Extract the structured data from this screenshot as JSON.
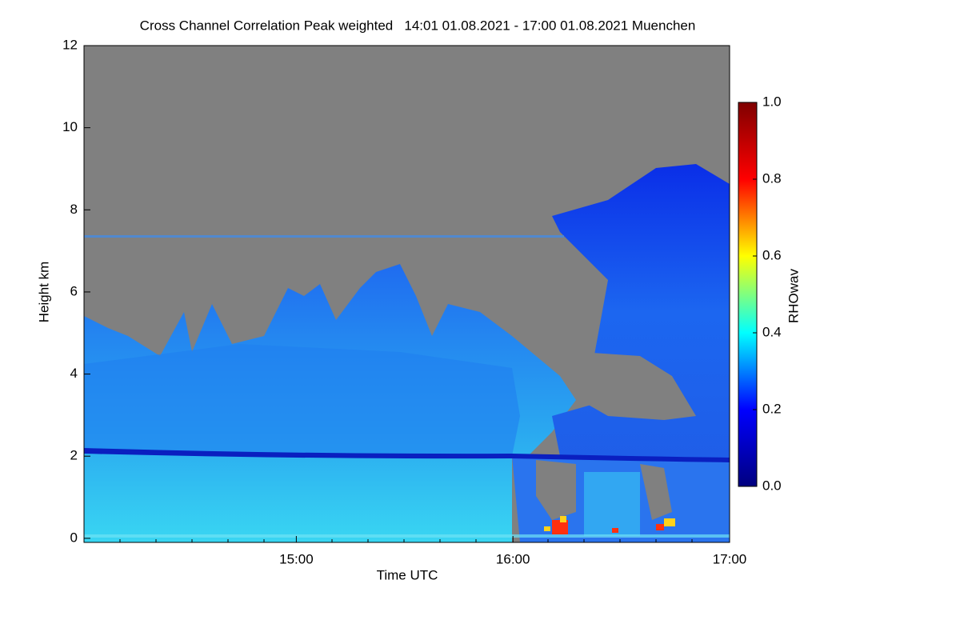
{
  "chart_data": {
    "type": "heatmap",
    "title": "Cross Channel Correlation Peak weighted   14:01 01.08.2021 - 17:00 01.08.2021 Muenchen",
    "xlabel": "Time UTC",
    "ylabel": "Height km",
    "xlim": [
      14.02,
      17.0
    ],
    "xticks": [
      {
        "value": 15,
        "label": "15:00"
      },
      {
        "value": 16,
        "label": "16:00"
      },
      {
        "value": 17,
        "label": "17:00"
      }
    ],
    "ylim": [
      -0.1,
      12
    ],
    "yticks": [
      0,
      2,
      4,
      6,
      8,
      10,
      12
    ],
    "colorbar": {
      "label": "RHOwav",
      "lim": [
        0,
        1
      ],
      "ticks": [
        {
          "value": 0,
          "label": "0.0"
        },
        0.2,
        0.4,
        0.6,
        0.8,
        {
          "value": 1,
          "label": "1.0"
        }
      ],
      "colors": [
        "#00007f",
        "#0000ff",
        "#00ffff",
        "#ffff00",
        "#ff0000",
        "#7f0000"
      ]
    }
  }
}
